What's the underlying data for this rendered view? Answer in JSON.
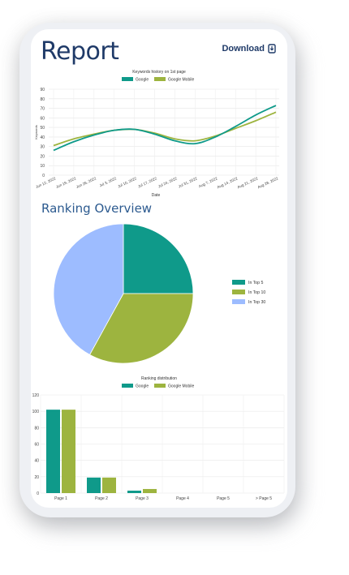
{
  "header": {
    "title": "Report",
    "download_label": "Download"
  },
  "sections": {
    "ranking_overview": "Ranking Overview"
  },
  "colors": {
    "google": "#0f9a8a",
    "google_mobile": "#9db43f",
    "top10": "#9db43f",
    "top30": "#9dbcff",
    "navy": "#1f3a68"
  },
  "icons": {
    "download": "download-icon"
  },
  "chart_data": [
    {
      "type": "line",
      "title": "Keywords history on 1st page",
      "xlabel": "Date",
      "ylabel": "Keywords",
      "ylim": [
        0,
        90
      ],
      "yticks": [
        0,
        10,
        20,
        30,
        40,
        50,
        60,
        70,
        80,
        90
      ],
      "grid": true,
      "legend": "top-center",
      "categories": [
        "Jun 12, 2022",
        "Jun 19, 2022",
        "Jun 26, 2022",
        "Jul 3, 2022",
        "Jul 10, 2022",
        "Jul 17, 2022",
        "Jul 24, 2022",
        "Jul 31, 2022",
        "Aug 7, 2022",
        "Aug 14, 2022",
        "Aug 21, 2022",
        "Aug 28, 2022"
      ],
      "series": [
        {
          "name": "Google",
          "values": [
            26,
            35,
            42,
            47,
            48,
            43,
            36,
            33,
            40,
            51,
            63,
            73
          ]
        },
        {
          "name": "Google Mobile",
          "values": [
            31,
            38,
            43,
            47,
            48,
            44,
            38,
            36,
            41,
            49,
            57,
            66
          ]
        }
      ]
    },
    {
      "type": "pie",
      "legend": "right",
      "labels": [
        "In Top 5",
        "In Top 10",
        "In Top 30"
      ],
      "values": [
        25,
        33,
        42
      ]
    },
    {
      "type": "bar",
      "title": "Ranking distribution",
      "legend": "top-center",
      "ylim": [
        0,
        120
      ],
      "yticks": [
        0,
        20,
        40,
        60,
        80,
        100,
        120
      ],
      "grid": true,
      "categories": [
        "Page 1",
        "Page 2",
        "Page 3",
        "Page 4",
        "Page 5",
        "> Page 5"
      ],
      "series": [
        {
          "name": "Google",
          "values": [
            102,
            19,
            3,
            0,
            0,
            0
          ]
        },
        {
          "name": "Google Mobile",
          "values": [
            102,
            19,
            5,
            0,
            0,
            0
          ]
        }
      ]
    }
  ]
}
